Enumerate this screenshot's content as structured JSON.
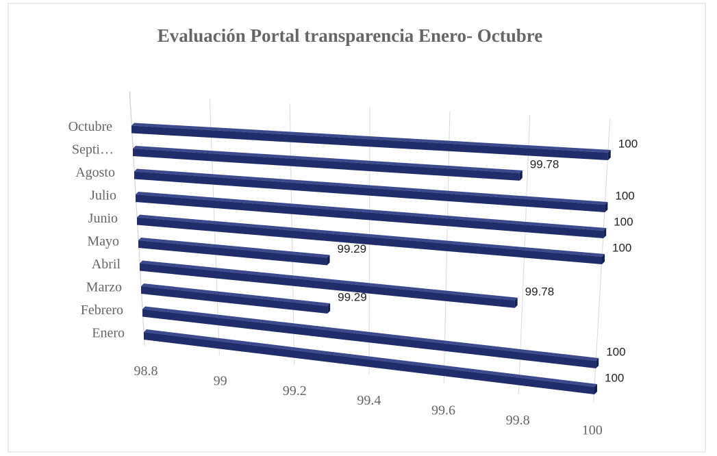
{
  "chart_data": {
    "type": "bar3d",
    "orientation": "horizontal",
    "title": "Evaluación Portal transparencia Enero- Octubre",
    "categories": [
      "Enero",
      "Febrero",
      "Marzo",
      "Abril",
      "Mayo",
      "Junio",
      "Julio",
      "Agosto",
      "Septi…",
      "Octubre"
    ],
    "values": [
      100,
      100,
      99.29,
      99.78,
      99.29,
      100,
      100,
      100,
      99.78,
      100
    ],
    "color": "#1f2d6b",
    "xlim": [
      98.8,
      100
    ],
    "xticks": [
      98.8,
      99,
      99.2,
      99.4,
      99.6,
      99.8,
      100
    ],
    "grid": true
  }
}
